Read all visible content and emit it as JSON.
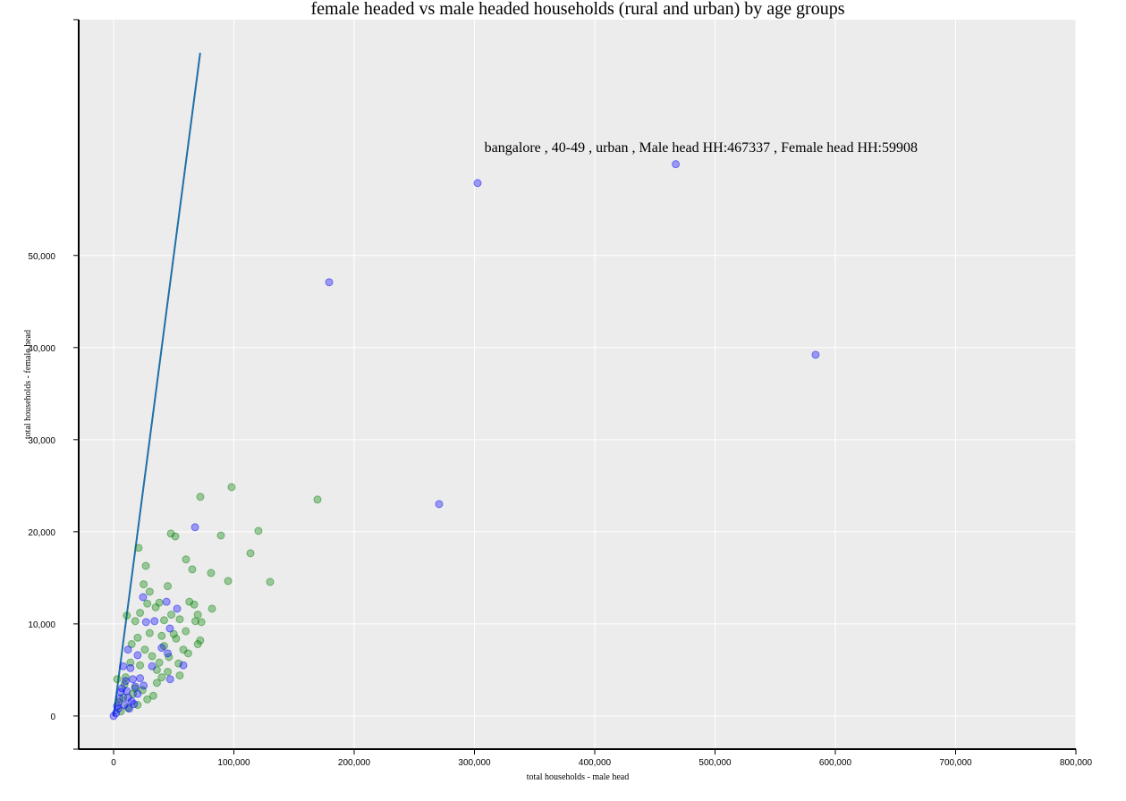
{
  "chart_data": {
    "type": "scatter",
    "title": "female headed vs male headed households (rural and urban) by age groups",
    "x_label": "total households - male head",
    "y_label": "total households - female head",
    "annotation": "bangalore , 40-49 , urban , Male head HH:467337 , Female head HH:59908",
    "xlim": [
      -29000,
      800000
    ],
    "ylim": [
      -3600,
      75600
    ],
    "xticks": [
      0,
      {
        "value": 100000,
        "label": "100,000"
      },
      {
        "value": 200000,
        "label": "200,000"
      },
      {
        "value": 300000,
        "label": "300,000"
      },
      {
        "value": 400000,
        "label": "400,000"
      },
      {
        "value": 500000,
        "label": "500,000"
      },
      {
        "value": 600000,
        "label": "600,000"
      },
      {
        "value": 700000,
        "label": "700,000"
      },
      {
        "value": 800000,
        "label": "800,000"
      }
    ],
    "yticks": [
      0,
      {
        "value": 10000,
        "label": "10,000"
      },
      {
        "value": 20000,
        "label": "20,000"
      },
      {
        "value": 30000,
        "label": "30,000"
      },
      {
        "value": 40000,
        "label": "40,000"
      },
      {
        "value": 50000,
        "label": "50,000"
      }
    ],
    "grid": true,
    "reference_line": {
      "color": "#1f6fa8",
      "x": [
        0,
        72000
      ],
      "values": [
        0,
        72000
      ]
    },
    "series": [
      {
        "color": "green",
        "x": [
          98100,
          169500,
          72100,
          120400,
          89200,
          47600,
          51300,
          20800,
          113800,
          60200,
          81000,
          65400,
          95200,
          130100,
          26800,
          81800,
          11000,
          25000,
          30000,
          38000,
          45000,
          63000,
          67000,
          70000,
          73000,
          68000,
          55000,
          48000,
          42000,
          35000,
          28000,
          22000,
          18000,
          15000,
          20000,
          30000,
          40000,
          50000,
          58000,
          72000,
          70000,
          62000,
          54000,
          46000,
          38000,
          32000,
          26000,
          14000,
          10000,
          9000,
          18000,
          24000,
          33000,
          40000,
          55000,
          45000,
          36000,
          28000,
          20000,
          12000,
          6000,
          8000,
          16000,
          4000,
          3000,
          52000,
          60000,
          42000,
          36000,
          22000
        ],
        "values": [
          24850,
          23500,
          23800,
          20100,
          19600,
          19800,
          19500,
          18250,
          17670,
          17000,
          15530,
          15920,
          14660,
          14560,
          16300,
          11650,
          10900,
          14300,
          13500,
          12300,
          14100,
          12400,
          12100,
          11000,
          10200,
          10300,
          10500,
          11000,
          10400,
          11800,
          12200,
          11200,
          10300,
          7800,
          8500,
          9000,
          8700,
          8900,
          7200,
          8200,
          7800,
          6800,
          5700,
          6400,
          5800,
          6500,
          7200,
          5800,
          4200,
          3400,
          3000,
          2800,
          2200,
          4200,
          4400,
          4800,
          3600,
          1800,
          1200,
          900,
          500,
          2000,
          2400,
          1500,
          4000,
          8400,
          9200,
          7600,
          5000,
          5500
        ]
      },
      {
        "color": "blue",
        "x": [
          302600,
          467337,
          179200,
          583600,
          270600,
          67700,
          52800,
          24500,
          46800,
          44000,
          40000,
          34000,
          27000,
          47000,
          32000,
          45000,
          58000,
          12000,
          8000,
          20000,
          14000,
          10000,
          16000,
          18000,
          6000,
          12000,
          20000,
          15000,
          9000,
          4000,
          2000,
          0,
          7000,
          22000,
          25000,
          11000,
          5000,
          3000,
          13000,
          17000
        ],
        "values": [
          57860,
          59908,
          47090,
          39220,
          23010,
          20490,
          11650,
          12900,
          9500,
          12400,
          7400,
          10300,
          10200,
          4000,
          5400,
          6800,
          5500,
          7200,
          5400,
          6600,
          5200,
          3800,
          4000,
          3200,
          2600,
          2000,
          2400,
          1600,
          1200,
          800,
          300,
          0,
          3000,
          4100,
          3300,
          2700,
          1900,
          1100,
          800,
          1300
        ]
      }
    ]
  }
}
